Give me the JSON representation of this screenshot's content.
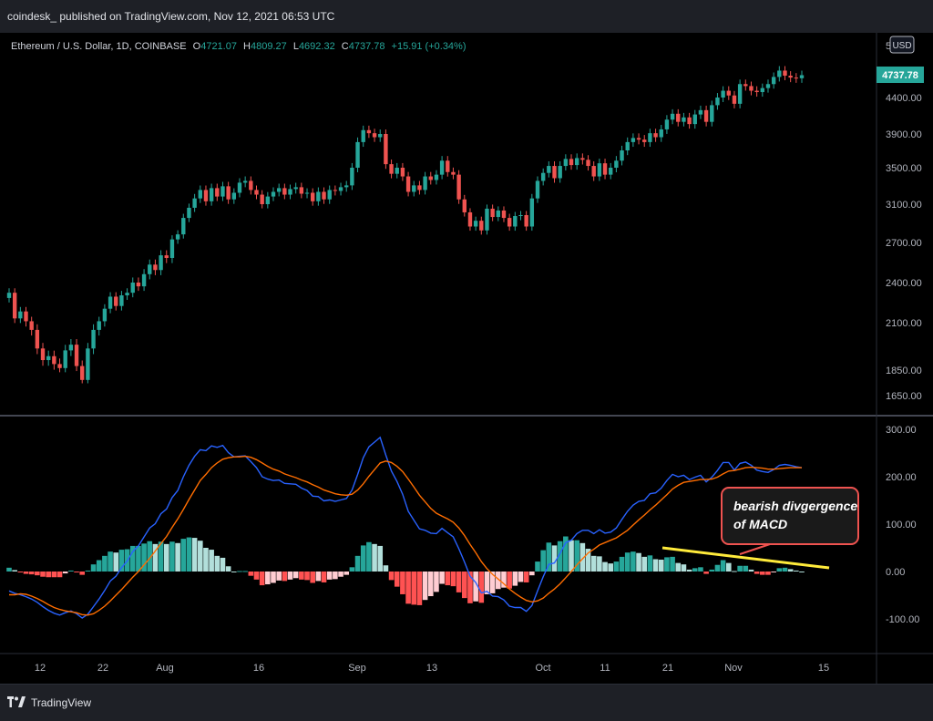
{
  "header": {
    "byline": "coindesk_ published on TradingView.com, Nov 12, 2021 06:53 UTC"
  },
  "legend": {
    "symbol": "Ethereum / U.S. Dollar, 1D, COINBASE",
    "o_label": "O",
    "o_value": "4721.07",
    "h_label": "H",
    "h_value": "4809.27",
    "l_label": "L",
    "l_value": "4692.32",
    "c_label": "C",
    "c_value": "4737.78",
    "change": "+15.91 (+0.34%)"
  },
  "currency_badge": "USD",
  "top_price_tick_partial": "5",
  "last_price_label": "4737.78",
  "annotation": {
    "line1": "bearish divgergence",
    "line2": "of MACD"
  },
  "footer": {
    "brand": "TradingView",
    "logo_icon": "tradingview-logo-icon"
  },
  "colors": {
    "up": "#26a69a",
    "down": "#ef5350",
    "macd_line": "#2962ff",
    "signal_line": "#ff6d00",
    "hist_up_strong": "#26a69a",
    "hist_up_weak": "#b2dfdb",
    "hist_down_strong": "#ff5252",
    "hist_down_weak": "#ffcdd2",
    "trendline": "#ffeb3b",
    "annotation_border": "#ef5350",
    "annotation_bg": "#1a1a1a"
  },
  "chart_data": [
    {
      "type": "candlestick",
      "title": "Ethereum / U.S. Dollar, 1D, COINBASE",
      "y_ticks": [
        1650,
        1850,
        2100,
        2400,
        2700,
        3100,
        3500,
        3900,
        4400
      ],
      "y_tick_labels": [
        "1650.00",
        "1850.00",
        "2100.00",
        "2400.00",
        "2700.00",
        "3100.00",
        "3500.00",
        "3900.00",
        "4400.00"
      ],
      "x_tick_labels": [
        "12",
        "22",
        "Aug",
        "16",
        "Sep",
        "13",
        "Oct",
        "11",
        "21",
        "Nov",
        "15"
      ],
      "closes": [
        2320,
        2130,
        2180,
        2110,
        2060,
        1960,
        1900,
        1920,
        1880,
        1860,
        1950,
        1980,
        1870,
        1770,
        1960,
        2060,
        2110,
        2200,
        2290,
        2220,
        2300,
        2320,
        2400,
        2370,
        2460,
        2530,
        2490,
        2600,
        2580,
        2730,
        2780,
        2950,
        3060,
        3160,
        3250,
        3130,
        3270,
        3180,
        3290,
        3150,
        3220,
        3330,
        3350,
        3250,
        3200,
        3100,
        3180,
        3230,
        3270,
        3200,
        3260,
        3280,
        3210,
        3220,
        3130,
        3230,
        3150,
        3250,
        3240,
        3280,
        3300,
        3500,
        3800,
        3950,
        3910,
        3860,
        3900,
        3540,
        3430,
        3500,
        3400,
        3230,
        3300,
        3250,
        3400,
        3360,
        3420,
        3580,
        3450,
        3420,
        3150,
        3010,
        2860,
        2920,
        2820,
        3050,
        2960,
        3030,
        2950,
        2860,
        2970,
        2980,
        2860,
        3160,
        3350,
        3440,
        3520,
        3380,
        3520,
        3600,
        3530,
        3610,
        3590,
        3520,
        3400,
        3550,
        3420,
        3500,
        3580,
        3700,
        3800,
        3850,
        3830,
        3800,
        3910,
        3860,
        3960,
        4090,
        4170,
        4060,
        4120,
        4030,
        4160,
        4220,
        4060,
        4290,
        4400,
        4500,
        4430,
        4310,
        4600,
        4570,
        4500,
        4480,
        4540,
        4600,
        4710,
        4810,
        4730,
        4700,
        4690,
        4737.78
      ],
      "series": [
        {
          "name": "ETHUSD"
        }
      ]
    },
    {
      "type": "line",
      "title": "",
      "y_ticks": [
        300,
        200,
        100,
        0,
        -100
      ],
      "y_tick_labels": [
        "300.00",
        "200.00",
        "100.00",
        "0.00",
        "-100.00"
      ],
      "series": [
        {
          "key": "macd",
          "values": [
            -41,
            -46,
            -49,
            -53,
            -58,
            -65,
            -74,
            -82,
            -88,
            -92,
            -87,
            -83,
            -89,
            -98,
            -90,
            -74,
            -58,
            -40,
            -20,
            -10,
            8,
            22,
            42,
            54,
            73,
            92,
            101,
            122,
            132,
            156,
            171,
            200,
            224,
            243,
            257,
            255,
            265,
            262,
            266,
            251,
            242,
            243,
            244,
            232,
            219,
            200,
            195,
            192,
            193,
            186,
            185,
            184,
            176,
            171,
            159,
            158,
            149,
            151,
            148,
            151,
            154,
            172,
            205,
            240,
            263,
            273,
            283,
            246,
            212,
            190,
            163,
            127,
            108,
            90,
            87,
            81,
            80,
            91,
            82,
            73,
            48,
            20,
            -10,
            -23,
            -45,
            -42,
            -52,
            -53,
            -60,
            -73,
            -76,
            -76,
            -84,
            -72,
            -41,
            -11,
            15,
            18,
            38,
            61,
            66,
            80,
            87,
            87,
            80,
            88,
            81,
            83,
            92,
            110,
            127,
            140,
            148,
            150,
            164,
            166,
            176,
            192,
            205,
            200,
            203,
            194,
            199,
            203,
            189,
            199,
            213,
            230,
            230,
            214,
            228,
            231,
            224,
            214,
            211,
            209,
            215,
            224,
            226,
            224,
            221,
            219
          ]
        },
        {
          "key": "signal",
          "values": [
            -49,
            -49,
            -47,
            -48,
            -52,
            -57,
            -63,
            -70,
            -76,
            -80,
            -83,
            -85,
            -87,
            -91,
            -92,
            -89,
            -82,
            -73,
            -62,
            -50,
            -38,
            -25,
            -12,
            0,
            14,
            28,
            43,
            59,
            74,
            93,
            111,
            131,
            152,
            172,
            192,
            205,
            219,
            229,
            237,
            240,
            242,
            242,
            243,
            241,
            236,
            229,
            222,
            216,
            212,
            206,
            202,
            198,
            193,
            189,
            183,
            178,
            172,
            168,
            164,
            162,
            161,
            163,
            172,
            185,
            201,
            215,
            229,
            233,
            230,
            222,
            211,
            195,
            178,
            161,
            147,
            133,
            123,
            117,
            111,
            104,
            92,
            76,
            57,
            40,
            21,
            6,
            -6,
            -16,
            -26,
            -37,
            -46,
            -54,
            -61,
            -64,
            -62,
            -56,
            -46,
            -37,
            -26,
            -13,
            0,
            14,
            27,
            39,
            47,
            56,
            61,
            66,
            71,
            79,
            87,
            98,
            109,
            119,
            130,
            140,
            151,
            162,
            174,
            182,
            188,
            190,
            192,
            194,
            194,
            195,
            199,
            206,
            212,
            213,
            216,
            219,
            220,
            219,
            218,
            216,
            216,
            217,
            218,
            219,
            219,
            219
          ]
        }
      ]
    }
  ]
}
